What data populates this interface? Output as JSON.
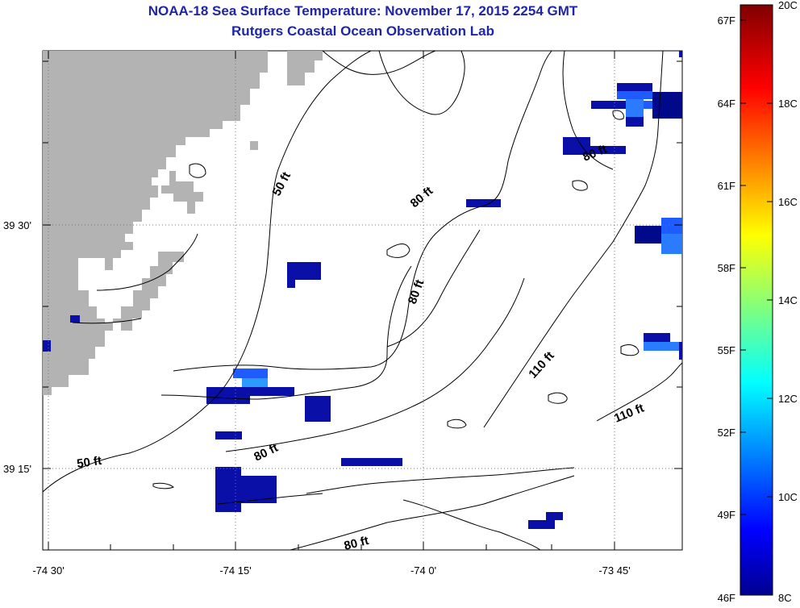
{
  "header": {
    "title": "NOAA-18 Sea Surface Temperature:  November 17, 2015 2254 GMT",
    "subtitle": "Rutgers Coastal Ocean Observation Lab"
  },
  "map": {
    "lon_labels": [
      "-74 30'",
      "-74 15'",
      "-74 0'",
      "-73 45'"
    ],
    "lat_labels": [
      "39 30'",
      "39 15'"
    ],
    "contour_labels": [
      "50 ft",
      "80 ft",
      "80 ft",
      "80 ft",
      "110 ft",
      "110 ft",
      "80 ft",
      "50 ft",
      "80 ft"
    ],
    "land_color": "#b3b3b3",
    "contour_color": "#000000"
  },
  "colorbar": {
    "fahrenheit_labels": [
      "67F",
      "64F",
      "61F",
      "58F",
      "55F",
      "52F",
      "49F",
      "46F"
    ],
    "celsius_labels": [
      "20C",
      "18C",
      "16C",
      "14C",
      "12C",
      "10C",
      "8C"
    ],
    "range_c": [
      8,
      20
    ],
    "colormap": "jet"
  }
}
